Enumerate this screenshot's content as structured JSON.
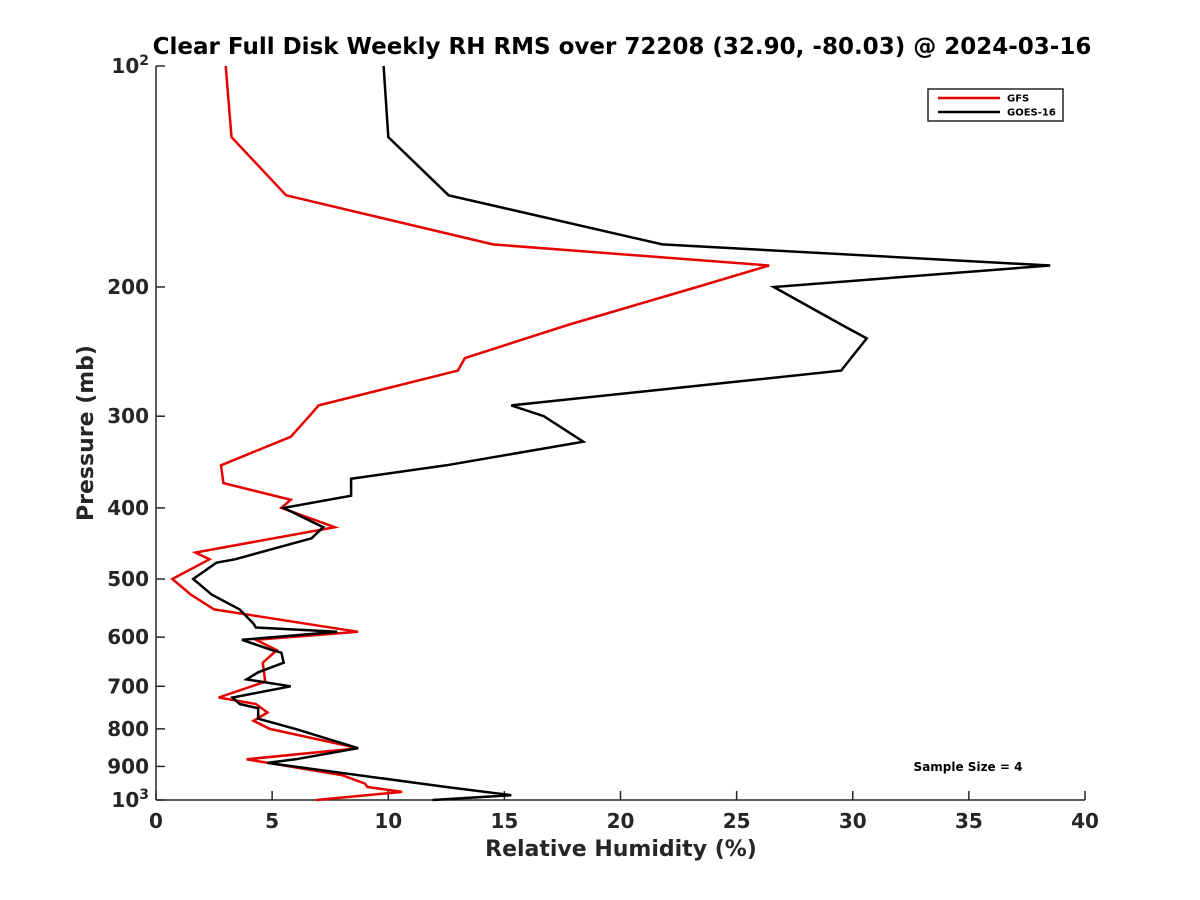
{
  "chart_data": {
    "type": "line",
    "title": "Clear Full Disk Weekly RH RMS over 72208 (32.90, -80.03) @ 2024-03-16",
    "xlabel": "Relative Humidity (%)",
    "ylabel": "Pressure (mb)",
    "xlim": [
      0,
      40
    ],
    "ylim": [
      100,
      1000
    ],
    "y_scale": "log",
    "y_reversed": true,
    "x_ticks": [
      0,
      5,
      10,
      15,
      20,
      25,
      30,
      35,
      40
    ],
    "x_tick_labels": [
      "0",
      "5",
      "10",
      "15",
      "20",
      "25",
      "30",
      "35",
      "40"
    ],
    "y_ticks": [
      100,
      200,
      300,
      400,
      500,
      600,
      700,
      800,
      900,
      1000
    ],
    "y_tick_labels": [
      {
        "base": "10",
        "exp": "2"
      },
      {
        "base": "200"
      },
      {
        "base": "300"
      },
      {
        "base": "400"
      },
      {
        "base": "500"
      },
      {
        "base": "600"
      },
      {
        "base": "700"
      },
      {
        "base": "800"
      },
      {
        "base": "900"
      },
      {
        "base": "10",
        "exp": "3"
      }
    ],
    "grid": false,
    "legend_position": "top-right",
    "annotation": "Sample Size = 4",
    "series": [
      {
        "name": "GFS",
        "color": "#e60000",
        "points": [
          [
            3.0,
            100
          ],
          [
            3.25,
            125
          ],
          [
            5.6,
            150
          ],
          [
            14.5,
            175
          ],
          [
            26.4,
            187
          ],
          [
            23.3,
            200
          ],
          [
            17.8,
            225
          ],
          [
            13.3,
            250
          ],
          [
            13.0,
            260
          ],
          [
            7.0,
            290
          ],
          [
            6.6,
            300
          ],
          [
            5.8,
            320
          ],
          [
            2.8,
            350
          ],
          [
            2.9,
            370
          ],
          [
            5.8,
            390
          ],
          [
            5.4,
            400
          ],
          [
            7.7,
            425
          ],
          [
            1.7,
            460
          ],
          [
            2.3,
            470
          ],
          [
            0.7,
            500
          ],
          [
            1.5,
            525
          ],
          [
            2.5,
            550
          ],
          [
            8.7,
            590
          ],
          [
            4.3,
            605
          ],
          [
            5.2,
            625
          ],
          [
            4.6,
            650
          ],
          [
            4.7,
            690
          ],
          [
            2.7,
            725
          ],
          [
            4.3,
            740
          ],
          [
            4.8,
            760
          ],
          [
            4.2,
            780
          ],
          [
            4.9,
            800
          ],
          [
            8.7,
            850
          ],
          [
            3.9,
            880
          ],
          [
            8.0,
            925
          ],
          [
            9.0,
            950
          ],
          [
            9.1,
            960
          ],
          [
            10.6,
            975
          ],
          [
            6.9,
            1000
          ]
        ]
      },
      {
        "name": "GOES-16",
        "color": "#000000",
        "points": [
          [
            9.8,
            100
          ],
          [
            10.0,
            125
          ],
          [
            12.6,
            150
          ],
          [
            21.8,
            175
          ],
          [
            38.5,
            187
          ],
          [
            26.6,
            200
          ],
          [
            29.5,
            225
          ],
          [
            30.6,
            235
          ],
          [
            29.5,
            260
          ],
          [
            15.3,
            290
          ],
          [
            16.7,
            300
          ],
          [
            18.4,
            325
          ],
          [
            12.5,
            350
          ],
          [
            8.4,
            365
          ],
          [
            8.4,
            385
          ],
          [
            5.5,
            400
          ],
          [
            7.2,
            425
          ],
          [
            6.7,
            440
          ],
          [
            3.4,
            470
          ],
          [
            2.6,
            475
          ],
          [
            1.6,
            500
          ],
          [
            2.4,
            525
          ],
          [
            3.6,
            550
          ],
          [
            4.2,
            575
          ],
          [
            4.3,
            582
          ],
          [
            7.8,
            590
          ],
          [
            3.7,
            605
          ],
          [
            5.0,
            625
          ],
          [
            5.4,
            630
          ],
          [
            5.5,
            650
          ],
          [
            4.4,
            670
          ],
          [
            3.9,
            685
          ],
          [
            5.8,
            700
          ],
          [
            3.3,
            725
          ],
          [
            3.6,
            740
          ],
          [
            4.4,
            750
          ],
          [
            4.4,
            775
          ],
          [
            6.0,
            800
          ],
          [
            8.7,
            850
          ],
          [
            6.0,
            880
          ],
          [
            4.8,
            890
          ],
          [
            12.5,
            960
          ],
          [
            15.3,
            985
          ],
          [
            11.9,
            1000
          ]
        ]
      }
    ]
  }
}
